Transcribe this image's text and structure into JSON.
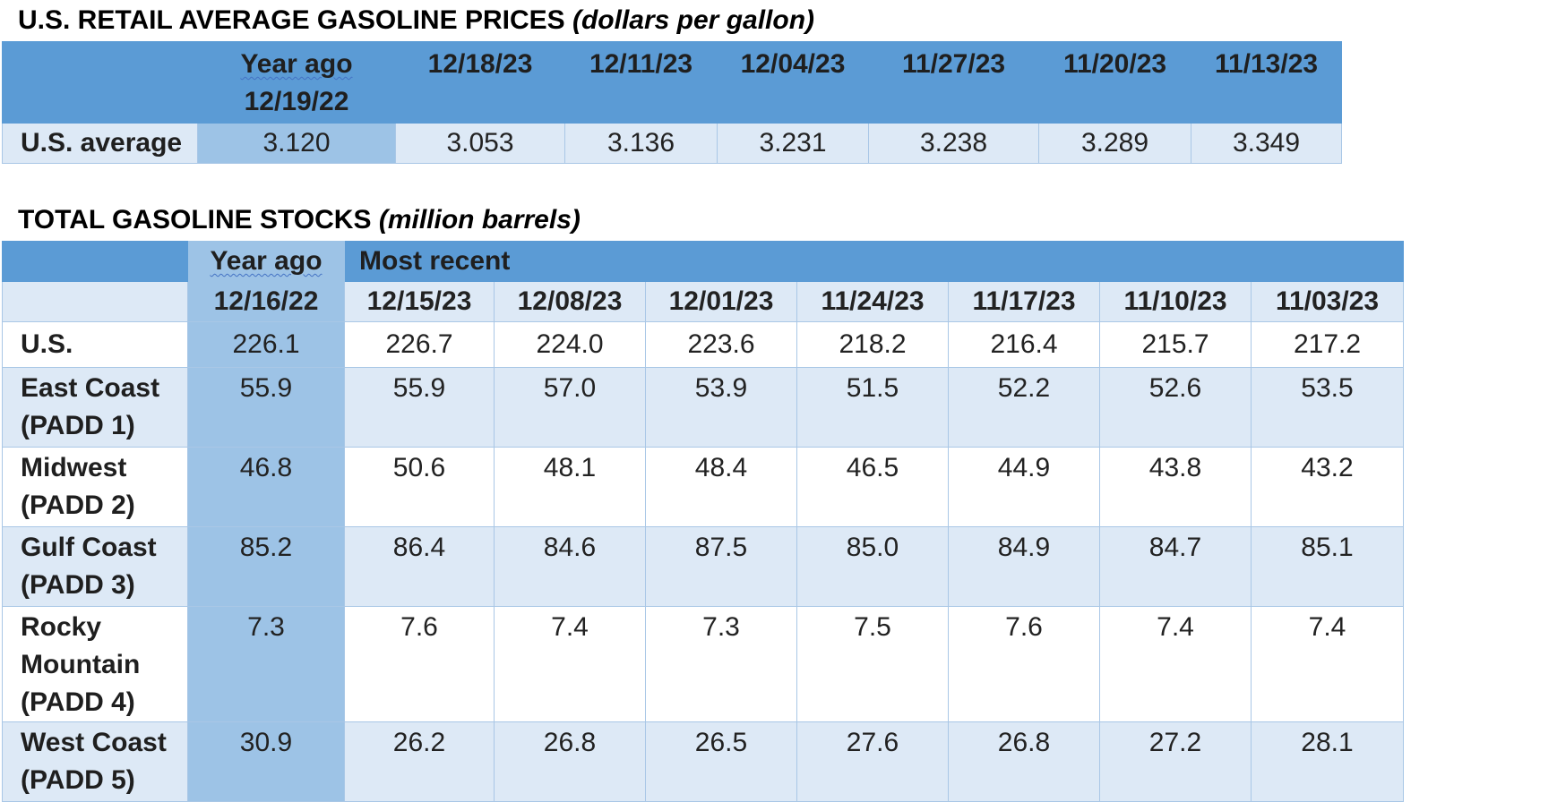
{
  "retail": {
    "title": "U.S. RETAIL AVERAGE GASOLINE PRICES",
    "unit": "(dollars per gallon)",
    "year_ago_label": "Year ago",
    "year_ago_date": "12/19/22",
    "dates": [
      "12/18/23",
      "12/11/23",
      "12/04/23",
      "11/27/23",
      "11/20/23",
      "11/13/23"
    ],
    "row_label": "U.S. average",
    "year_ago_value": "3.120",
    "values": [
      "3.053",
      "3.136",
      "3.231",
      "3.238",
      "3.289",
      "3.349"
    ]
  },
  "stocks": {
    "title": "TOTAL GASOLINE STOCKS",
    "unit": "(million barrels)",
    "year_ago_label": "Year ago",
    "most_recent_label": "Most recent",
    "year_ago_date": "12/16/22",
    "dates": [
      "12/15/23",
      "12/08/23",
      "12/01/23",
      "11/24/23",
      "11/17/23",
      "11/10/23",
      "11/03/23"
    ],
    "rows": [
      {
        "label": [
          "U.S."
        ],
        "year_ago": "226.1",
        "values": [
          "226.7",
          "224.0",
          "223.6",
          "218.2",
          "216.4",
          "215.7",
          "217.2"
        ]
      },
      {
        "label": [
          "East Coast",
          "(PADD 1)"
        ],
        "year_ago": "55.9",
        "values": [
          "55.9",
          "57.0",
          "53.9",
          "51.5",
          "52.2",
          "52.6",
          "53.5"
        ]
      },
      {
        "label": [
          "Midwest",
          "(PADD 2)"
        ],
        "year_ago": "46.8",
        "values": [
          "50.6",
          "48.1",
          "48.4",
          "46.5",
          "44.9",
          "43.8",
          "43.2"
        ]
      },
      {
        "label": [
          "Gulf Coast",
          "(PADD 3)"
        ],
        "year_ago": "85.2",
        "values": [
          "86.4",
          "84.6",
          "87.5",
          "85.0",
          "84.9",
          "84.7",
          "85.1"
        ]
      },
      {
        "label": [
          "Rocky",
          "Mountain",
          "(PADD 4)"
        ],
        "year_ago": "7.3",
        "values": [
          "7.6",
          "7.4",
          "7.3",
          "7.5",
          "7.6",
          "7.4",
          "7.4"
        ]
      },
      {
        "label": [
          "West Coast",
          "(PADD 5)"
        ],
        "year_ago": "30.9",
        "values": [
          "26.2",
          "26.8",
          "26.5",
          "27.6",
          "26.8",
          "27.2",
          "28.1"
        ]
      }
    ]
  },
  "colors": {
    "header_blue": "#5b9bd5",
    "year_ago_blue": "#9dc3e6",
    "light_row": "#dde9f6",
    "border": "#a9c7e6"
  }
}
